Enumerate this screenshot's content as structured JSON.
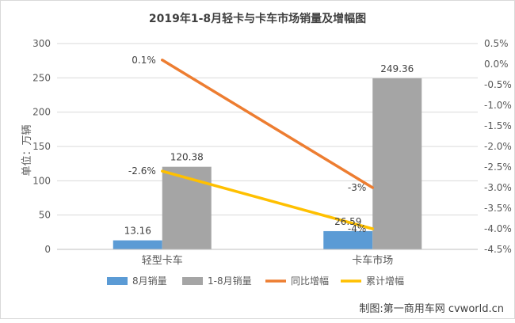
{
  "chart_data": {
    "type": "bar",
    "title": "2019年1-8月轻卡与卡车市场销量及增幅图",
    "ylabel_left": "单位：万辆",
    "categories": [
      "轻型卡车",
      "卡车市场"
    ],
    "bar_series": [
      {
        "name": "8月销量",
        "values": [
          13.16,
          26.59
        ],
        "labels": [
          "13.16",
          "26.59"
        ],
        "color": "#5b9bd5"
      },
      {
        "name": "1-8月销量",
        "values": [
          120.38,
          249.36
        ],
        "labels": [
          "120.38",
          "249.36"
        ],
        "color": "#a5a5a5"
      }
    ],
    "line_series": [
      {
        "name": "同比增幅",
        "values": [
          0.1,
          -3
        ],
        "labels": [
          "0.1%",
          "-3%"
        ],
        "color": "#ed7d31"
      },
      {
        "name": "累计增幅",
        "values": [
          -2.6,
          -4
        ],
        "labels": [
          "-2.6%",
          "-4%"
        ],
        "color": "#ffc000"
      }
    ],
    "y_left": {
      "min": 0,
      "max": 300,
      "ticks": [
        0,
        50,
        100,
        150,
        200,
        250,
        300
      ]
    },
    "y_right": {
      "min": -4.5,
      "max": 0.5,
      "ticks": [
        0.5,
        0.0,
        -0.5,
        -1.0,
        -1.5,
        -2.0,
        -2.5,
        -3.0,
        -3.5,
        -4.0,
        -4.5
      ],
      "tick_labels": [
        "0.5%",
        "0.0%",
        "-0.5%",
        "-1.0%",
        "-1.5%",
        "-2.0%",
        "-2.5%",
        "-3.0%",
        "-3.5%",
        "-4.0%",
        "-4.5%"
      ]
    },
    "grid": true,
    "legend_position": "bottom"
  },
  "watermark": "制图:第一商用车网 cvworld.cn"
}
